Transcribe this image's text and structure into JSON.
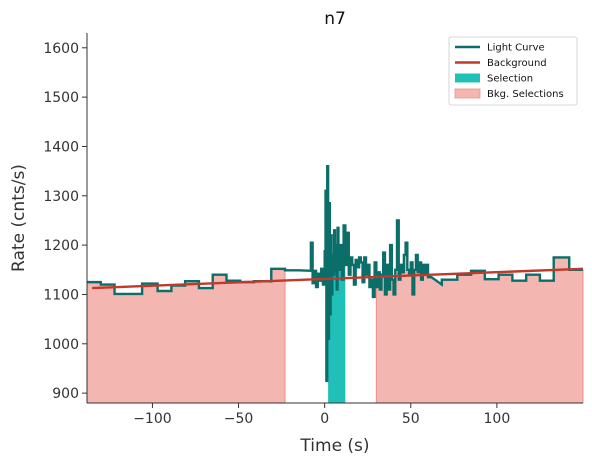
{
  "chart_data": {
    "type": "line",
    "title": "n7",
    "xlabel": "Time (s)",
    "ylabel": "Rate (cnts/s)",
    "xlim": [
      -138,
      150
    ],
    "ylim": [
      880,
      1630
    ],
    "x_ticks": [
      -100,
      -50,
      0,
      50,
      100
    ],
    "y_ticks": [
      900,
      1000,
      1100,
      1200,
      1300,
      1400,
      1500,
      1600
    ],
    "grid": false,
    "legend_position": "top-right",
    "legend": [
      {
        "label": "Light Curve",
        "kind": "line",
        "color": "#0b6e69"
      },
      {
        "label": "Background",
        "kind": "line",
        "color": "#c0392b"
      },
      {
        "label": "Selection",
        "kind": "patch",
        "color": "#20c0b8"
      },
      {
        "label": "Bkg. Selections",
        "kind": "patch",
        "color": "#f4b6b0"
      }
    ],
    "selection": {
      "x": [
        2,
        12
      ],
      "color": "#20c0b8"
    },
    "bkg_selections": [
      {
        "x": [
          -138,
          -23
        ]
      },
      {
        "x": [
          30,
          150
        ]
      }
    ],
    "background": {
      "x": [
        -135,
        150
      ],
      "y": [
        1113,
        1152
      ],
      "color": "#c0392b"
    },
    "light_curve": {
      "color": "#0b6e69",
      "steps": [
        [
          -138,
          1125
        ],
        [
          -130,
          1125
        ],
        [
          -130,
          1120
        ],
        [
          -122,
          1120
        ],
        [
          -122,
          1101
        ],
        [
          -106,
          1101
        ],
        [
          -106,
          1122
        ],
        [
          -97,
          1122
        ],
        [
          -97,
          1107
        ],
        [
          -89,
          1107
        ],
        [
          -89,
          1118
        ],
        [
          -81,
          1118
        ],
        [
          -81,
          1127
        ],
        [
          -73,
          1127
        ],
        [
          -73,
          1113
        ],
        [
          -65,
          1113
        ],
        [
          -65,
          1140
        ],
        [
          -57,
          1140
        ],
        [
          -57,
          1128
        ],
        [
          -49,
          1128
        ],
        [
          -49,
          1125
        ],
        [
          -41,
          1125
        ],
        [
          -41,
          1127
        ],
        [
          -31,
          1127
        ],
        [
          -31,
          1124
        ],
        [
          -31,
          1124
        ],
        [
          -31,
          1152
        ],
        [
          -23,
          1152
        ],
        [
          -23,
          1149
        ],
        [
          -15,
          1149
        ],
        [
          -8,
          1148
        ],
        [
          -8,
          1205
        ],
        [
          -7,
          1205
        ],
        [
          -7,
          1123
        ],
        [
          -6,
          1123
        ],
        [
          -6,
          1148
        ],
        [
          -5,
          1148
        ],
        [
          -5,
          1115
        ],
        [
          -4,
          1115
        ],
        [
          -4,
          1142
        ],
        [
          -3,
          1142
        ],
        [
          -3,
          1128
        ],
        [
          -2,
          1128
        ],
        [
          -2,
          1152
        ],
        [
          -1,
          1152
        ],
        [
          -1,
          1120
        ],
        [
          0,
          1120
        ],
        [
          0,
          1190
        ],
        [
          0,
          1130
        ],
        [
          0.5,
          1130
        ],
        [
          0.5,
          1310
        ],
        [
          1,
          1310
        ],
        [
          1,
          925
        ],
        [
          1.5,
          925
        ],
        [
          1.5,
          1360
        ],
        [
          2,
          1360
        ],
        [
          2,
          1010
        ],
        [
          2.5,
          1010
        ],
        [
          2.5,
          1285
        ],
        [
          3,
          1285
        ],
        [
          3,
          1060
        ],
        [
          3.5,
          1060
        ],
        [
          3.5,
          1220
        ],
        [
          4,
          1220
        ],
        [
          4,
          1100
        ],
        [
          4.5,
          1100
        ],
        [
          4.5,
          1180
        ],
        [
          5,
          1180
        ],
        [
          5,
          1140
        ],
        [
          5.5,
          1140
        ],
        [
          5.5,
          1230
        ],
        [
          6,
          1230
        ],
        [
          6,
          1150
        ],
        [
          6.5,
          1150
        ],
        [
          6.5,
          1200
        ],
        [
          7,
          1200
        ],
        [
          7,
          1110
        ],
        [
          7.5,
          1110
        ],
        [
          7.5,
          1235
        ],
        [
          8,
          1235
        ],
        [
          8,
          1150
        ],
        [
          9,
          1150
        ],
        [
          9,
          1200
        ],
        [
          10,
          1200
        ],
        [
          10,
          1130
        ],
        [
          11,
          1130
        ],
        [
          11,
          1240
        ],
        [
          12,
          1240
        ],
        [
          12,
          1160
        ],
        [
          13,
          1160
        ],
        [
          13,
          1225
        ],
        [
          14,
          1225
        ],
        [
          14,
          1140
        ],
        [
          15,
          1140
        ],
        [
          15,
          1175
        ],
        [
          16,
          1175
        ],
        [
          16,
          1160
        ],
        [
          17,
          1160
        ],
        [
          17,
          1120
        ],
        [
          18,
          1120
        ],
        [
          18,
          1170
        ],
        [
          19,
          1170
        ],
        [
          19,
          1155
        ],
        [
          20,
          1155
        ],
        [
          20,
          1175
        ],
        [
          21,
          1175
        ],
        [
          21,
          1165
        ],
        [
          22,
          1165
        ],
        [
          22,
          1125
        ],
        [
          23,
          1125
        ],
        [
          23,
          1175
        ],
        [
          24,
          1175
        ],
        [
          24,
          1140
        ],
        [
          25,
          1140
        ],
        [
          25,
          1160
        ],
        [
          26,
          1160
        ],
        [
          26,
          1115
        ],
        [
          27,
          1115
        ],
        [
          27,
          1130
        ],
        [
          28,
          1130
        ],
        [
          28,
          1095
        ],
        [
          29,
          1095
        ],
        [
          29,
          1165
        ],
        [
          30,
          1165
        ],
        [
          30,
          1115
        ],
        [
          31,
          1115
        ],
        [
          31,
          1145
        ],
        [
          32,
          1145
        ],
        [
          32,
          1110
        ],
        [
          33,
          1110
        ],
        [
          33,
          1140
        ],
        [
          34,
          1140
        ],
        [
          34,
          1185
        ],
        [
          35,
          1185
        ],
        [
          35,
          1100
        ],
        [
          36,
          1100
        ],
        [
          36,
          1160
        ],
        [
          37,
          1160
        ],
        [
          37,
          1110
        ],
        [
          38,
          1110
        ],
        [
          38,
          1200
        ],
        [
          39,
          1200
        ],
        [
          39,
          1130
        ],
        [
          40,
          1130
        ],
        [
          40,
          1100
        ],
        [
          41,
          1100
        ],
        [
          41,
          1150
        ],
        [
          42,
          1150
        ],
        [
          42,
          1250
        ],
        [
          43,
          1250
        ],
        [
          43,
          1130
        ],
        [
          44,
          1130
        ],
        [
          44,
          1160
        ],
        [
          45,
          1160
        ],
        [
          45,
          1145
        ],
        [
          46,
          1145
        ],
        [
          46,
          1180
        ],
        [
          47,
          1180
        ],
        [
          47,
          1205
        ],
        [
          48,
          1205
        ],
        [
          48,
          1150
        ],
        [
          49,
          1150
        ],
        [
          49,
          1140
        ],
        [
          50,
          1140
        ],
        [
          50,
          1165
        ],
        [
          51,
          1165
        ],
        [
          51,
          1100
        ],
        [
          52,
          1100
        ],
        [
          52,
          1150
        ],
        [
          53,
          1150
        ],
        [
          53,
          1180
        ],
        [
          54,
          1180
        ],
        [
          54,
          1145
        ],
        [
          55,
          1145
        ],
        [
          55,
          1165
        ],
        [
          56,
          1165
        ],
        [
          56,
          1130
        ],
        [
          57,
          1130
        ],
        [
          57,
          1160
        ],
        [
          58,
          1160
        ],
        [
          58,
          1140
        ],
        [
          59,
          1140
        ],
        [
          59,
          1160
        ],
        [
          60,
          1160
        ],
        [
          60,
          1135
        ],
        [
          62,
          1135
        ],
        [
          68,
          1120
        ],
        [
          68,
          1130
        ],
        [
          77,
          1130
        ],
        [
          77,
          1140
        ],
        [
          85,
          1140
        ],
        [
          85,
          1148
        ],
        [
          93,
          1148
        ],
        [
          93,
          1131
        ],
        [
          101,
          1131
        ],
        [
          101,
          1140
        ],
        [
          109,
          1140
        ],
        [
          109,
          1128
        ],
        [
          117,
          1128
        ],
        [
          117,
          1140
        ],
        [
          125,
          1140
        ],
        [
          125,
          1128
        ],
        [
          133,
          1128
        ],
        [
          133,
          1175
        ],
        [
          142,
          1175
        ],
        [
          142,
          1150
        ],
        [
          150,
          1150
        ]
      ]
    }
  }
}
